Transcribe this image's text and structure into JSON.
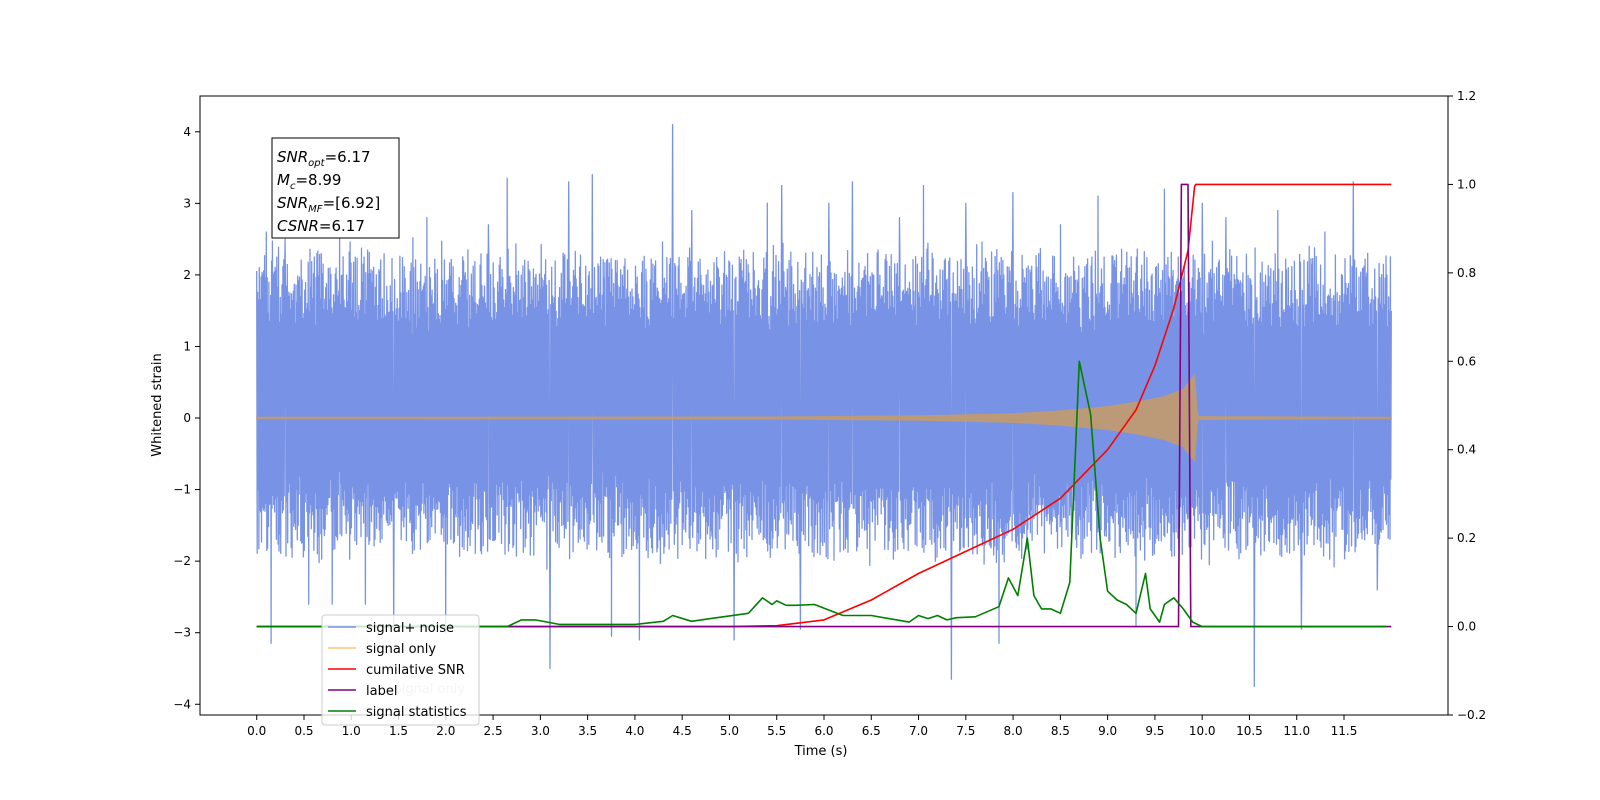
{
  "chart_data": {
    "type": "line",
    "xlabel": "Time (s)",
    "ylabel": "Whitened strain",
    "xlim": [
      -0.6,
      12.6
    ],
    "ylim": [
      -4.15,
      4.5
    ],
    "y2lim": [
      -0.2,
      1.2
    ],
    "x_ticks": [
      "0.0",
      "0.5",
      "1.0",
      "1.5",
      "2.0",
      "2.5",
      "3.0",
      "3.5",
      "4.0",
      "4.5",
      "5.0",
      "5.5",
      "6.0",
      "6.5",
      "7.0",
      "7.5",
      "8.0",
      "8.5",
      "9.0",
      "9.5",
      "10.0",
      "10.5",
      "11.0",
      "11.5"
    ],
    "y_ticks": [
      "4",
      "3",
      "2",
      "1",
      "0",
      "−1",
      "−2",
      "−3",
      "−4"
    ],
    "y2_ticks": [
      "1.2",
      "1.0",
      "0.8",
      "0.6",
      "0.4",
      "0.2",
      "0.0",
      "−0.2"
    ],
    "annotation": [
      {
        "main": "SNR",
        "sub": "opt",
        "rest": "=6.17"
      },
      {
        "main": "M",
        "sub": "c",
        "rest": "=8.99"
      },
      {
        "main": "SNR",
        "sub": "MF",
        "rest": "=[6.92]"
      },
      {
        "main": "CSNR",
        "sub": "",
        "rest": "=6.17"
      }
    ],
    "legend": {
      "placement": "lower-left",
      "entries": [
        {
          "label": "signal+ noise",
          "color": "#7893e6"
        },
        {
          "label": "signal only",
          "color": "#f7c676"
        },
        {
          "label": "cumilative SNR",
          "color": "#ff0000"
        },
        {
          "label": "label",
          "color": "#800080"
        },
        {
          "label": "signal statistics",
          "color": "#008000"
        }
      ]
    },
    "ghost_legend_text": "signal only",
    "series": [
      {
        "name": "signal+ noise",
        "axis": "left",
        "color": "#7893e6",
        "x_range": [
          0.0,
          12.0
        ],
        "band": [
          -1.9,
          2.3
        ],
        "spikes": [
          [
            0.1,
            2.6
          ],
          [
            0.15,
            -3.15
          ],
          [
            0.3,
            2.5
          ],
          [
            0.55,
            -2.6
          ],
          [
            0.8,
            -2.6
          ],
          [
            1.15,
            -2.6
          ],
          [
            1.45,
            -2.9
          ],
          [
            1.8,
            2.8
          ],
          [
            2.0,
            -3.0
          ],
          [
            2.45,
            2.7
          ],
          [
            2.65,
            3.35
          ],
          [
            3.1,
            -3.5
          ],
          [
            3.3,
            3.3
          ],
          [
            3.55,
            3.4
          ],
          [
            3.75,
            -3.05
          ],
          [
            4.05,
            -3.1
          ],
          [
            4.4,
            4.1
          ],
          [
            4.6,
            2.9
          ],
          [
            5.05,
            -3.1
          ],
          [
            5.4,
            3.0
          ],
          [
            5.55,
            3.25
          ],
          [
            5.75,
            -2.95
          ],
          [
            6.05,
            3.0
          ],
          [
            6.3,
            3.3
          ],
          [
            6.8,
            2.8
          ],
          [
            7.05,
            3.25
          ],
          [
            7.35,
            -3.65
          ],
          [
            7.5,
            3.0
          ],
          [
            7.85,
            -3.15
          ],
          [
            8.0,
            3.15
          ],
          [
            8.5,
            2.7
          ],
          [
            8.9,
            3.1
          ],
          [
            9.3,
            -2.9
          ],
          [
            9.6,
            3.2
          ],
          [
            10.0,
            3.0
          ],
          [
            10.25,
            2.8
          ],
          [
            10.55,
            -3.75
          ],
          [
            10.8,
            2.9
          ],
          [
            11.05,
            -2.95
          ],
          [
            11.3,
            2.6
          ],
          [
            11.6,
            3.3
          ],
          [
            11.85,
            -2.4
          ]
        ]
      },
      {
        "name": "signal only",
        "axis": "left",
        "color": "#c49b6c",
        "x": [
          0.0,
          5.5,
          7.0,
          8.0,
          8.5,
          9.0,
          9.3,
          9.6,
          9.8,
          9.92,
          9.95,
          12.0
        ],
        "amplitude": [
          0.01,
          0.015,
          0.03,
          0.06,
          0.1,
          0.16,
          0.22,
          0.3,
          0.4,
          0.6,
          0.02,
          0.01
        ]
      },
      {
        "name": "cumilative SNR",
        "axis": "right",
        "color": "#ff0000",
        "x": [
          0.0,
          5.0,
          5.5,
          6.0,
          6.5,
          7.0,
          7.5,
          8.0,
          8.5,
          9.0,
          9.3,
          9.5,
          9.7,
          9.85,
          9.92,
          9.93,
          12.0
        ],
        "values": [
          0.0,
          0.0,
          0.002,
          0.015,
          0.06,
          0.12,
          0.17,
          0.22,
          0.29,
          0.4,
          0.49,
          0.59,
          0.72,
          0.85,
          0.995,
          1.0,
          1.0
        ]
      },
      {
        "name": "label",
        "axis": "right",
        "color": "#800080",
        "x": [
          0.0,
          9.75,
          9.78,
          9.85,
          9.88,
          12.0
        ],
        "values": [
          0.0,
          0.0,
          1.0,
          1.0,
          0.0,
          0.0
        ]
      },
      {
        "name": "signal statistics",
        "axis": "right",
        "color": "#008000",
        "x": [
          0.0,
          2.65,
          2.8,
          2.95,
          3.2,
          3.5,
          4.0,
          4.3,
          4.4,
          4.6,
          4.8,
          5.2,
          5.35,
          5.45,
          5.5,
          5.6,
          5.7,
          5.9,
          6.2,
          6.5,
          6.9,
          7.0,
          7.1,
          7.2,
          7.3,
          7.4,
          7.6,
          7.85,
          7.95,
          8.05,
          8.15,
          8.22,
          8.3,
          8.4,
          8.5,
          8.6,
          8.7,
          8.82,
          8.92,
          9.0,
          9.1,
          9.2,
          9.3,
          9.4,
          9.45,
          9.55,
          9.6,
          9.7,
          9.8,
          9.9,
          10.0,
          10.5,
          11.0,
          11.5,
          11.95
        ],
        "values": [
          0.0,
          0.0,
          0.015,
          0.015,
          0.005,
          0.005,
          0.005,
          0.012,
          0.025,
          0.012,
          0.018,
          0.03,
          0.065,
          0.05,
          0.058,
          0.048,
          0.048,
          0.05,
          0.025,
          0.025,
          0.01,
          0.025,
          0.018,
          0.025,
          0.015,
          0.02,
          0.022,
          0.045,
          0.11,
          0.07,
          0.2,
          0.07,
          0.04,
          0.04,
          0.03,
          0.1,
          0.6,
          0.48,
          0.2,
          0.08,
          0.06,
          0.05,
          0.03,
          0.12,
          0.04,
          0.01,
          0.05,
          0.065,
          0.04,
          0.01,
          0.0,
          0.0,
          0.0,
          0.0,
          0.0
        ]
      }
    ]
  }
}
